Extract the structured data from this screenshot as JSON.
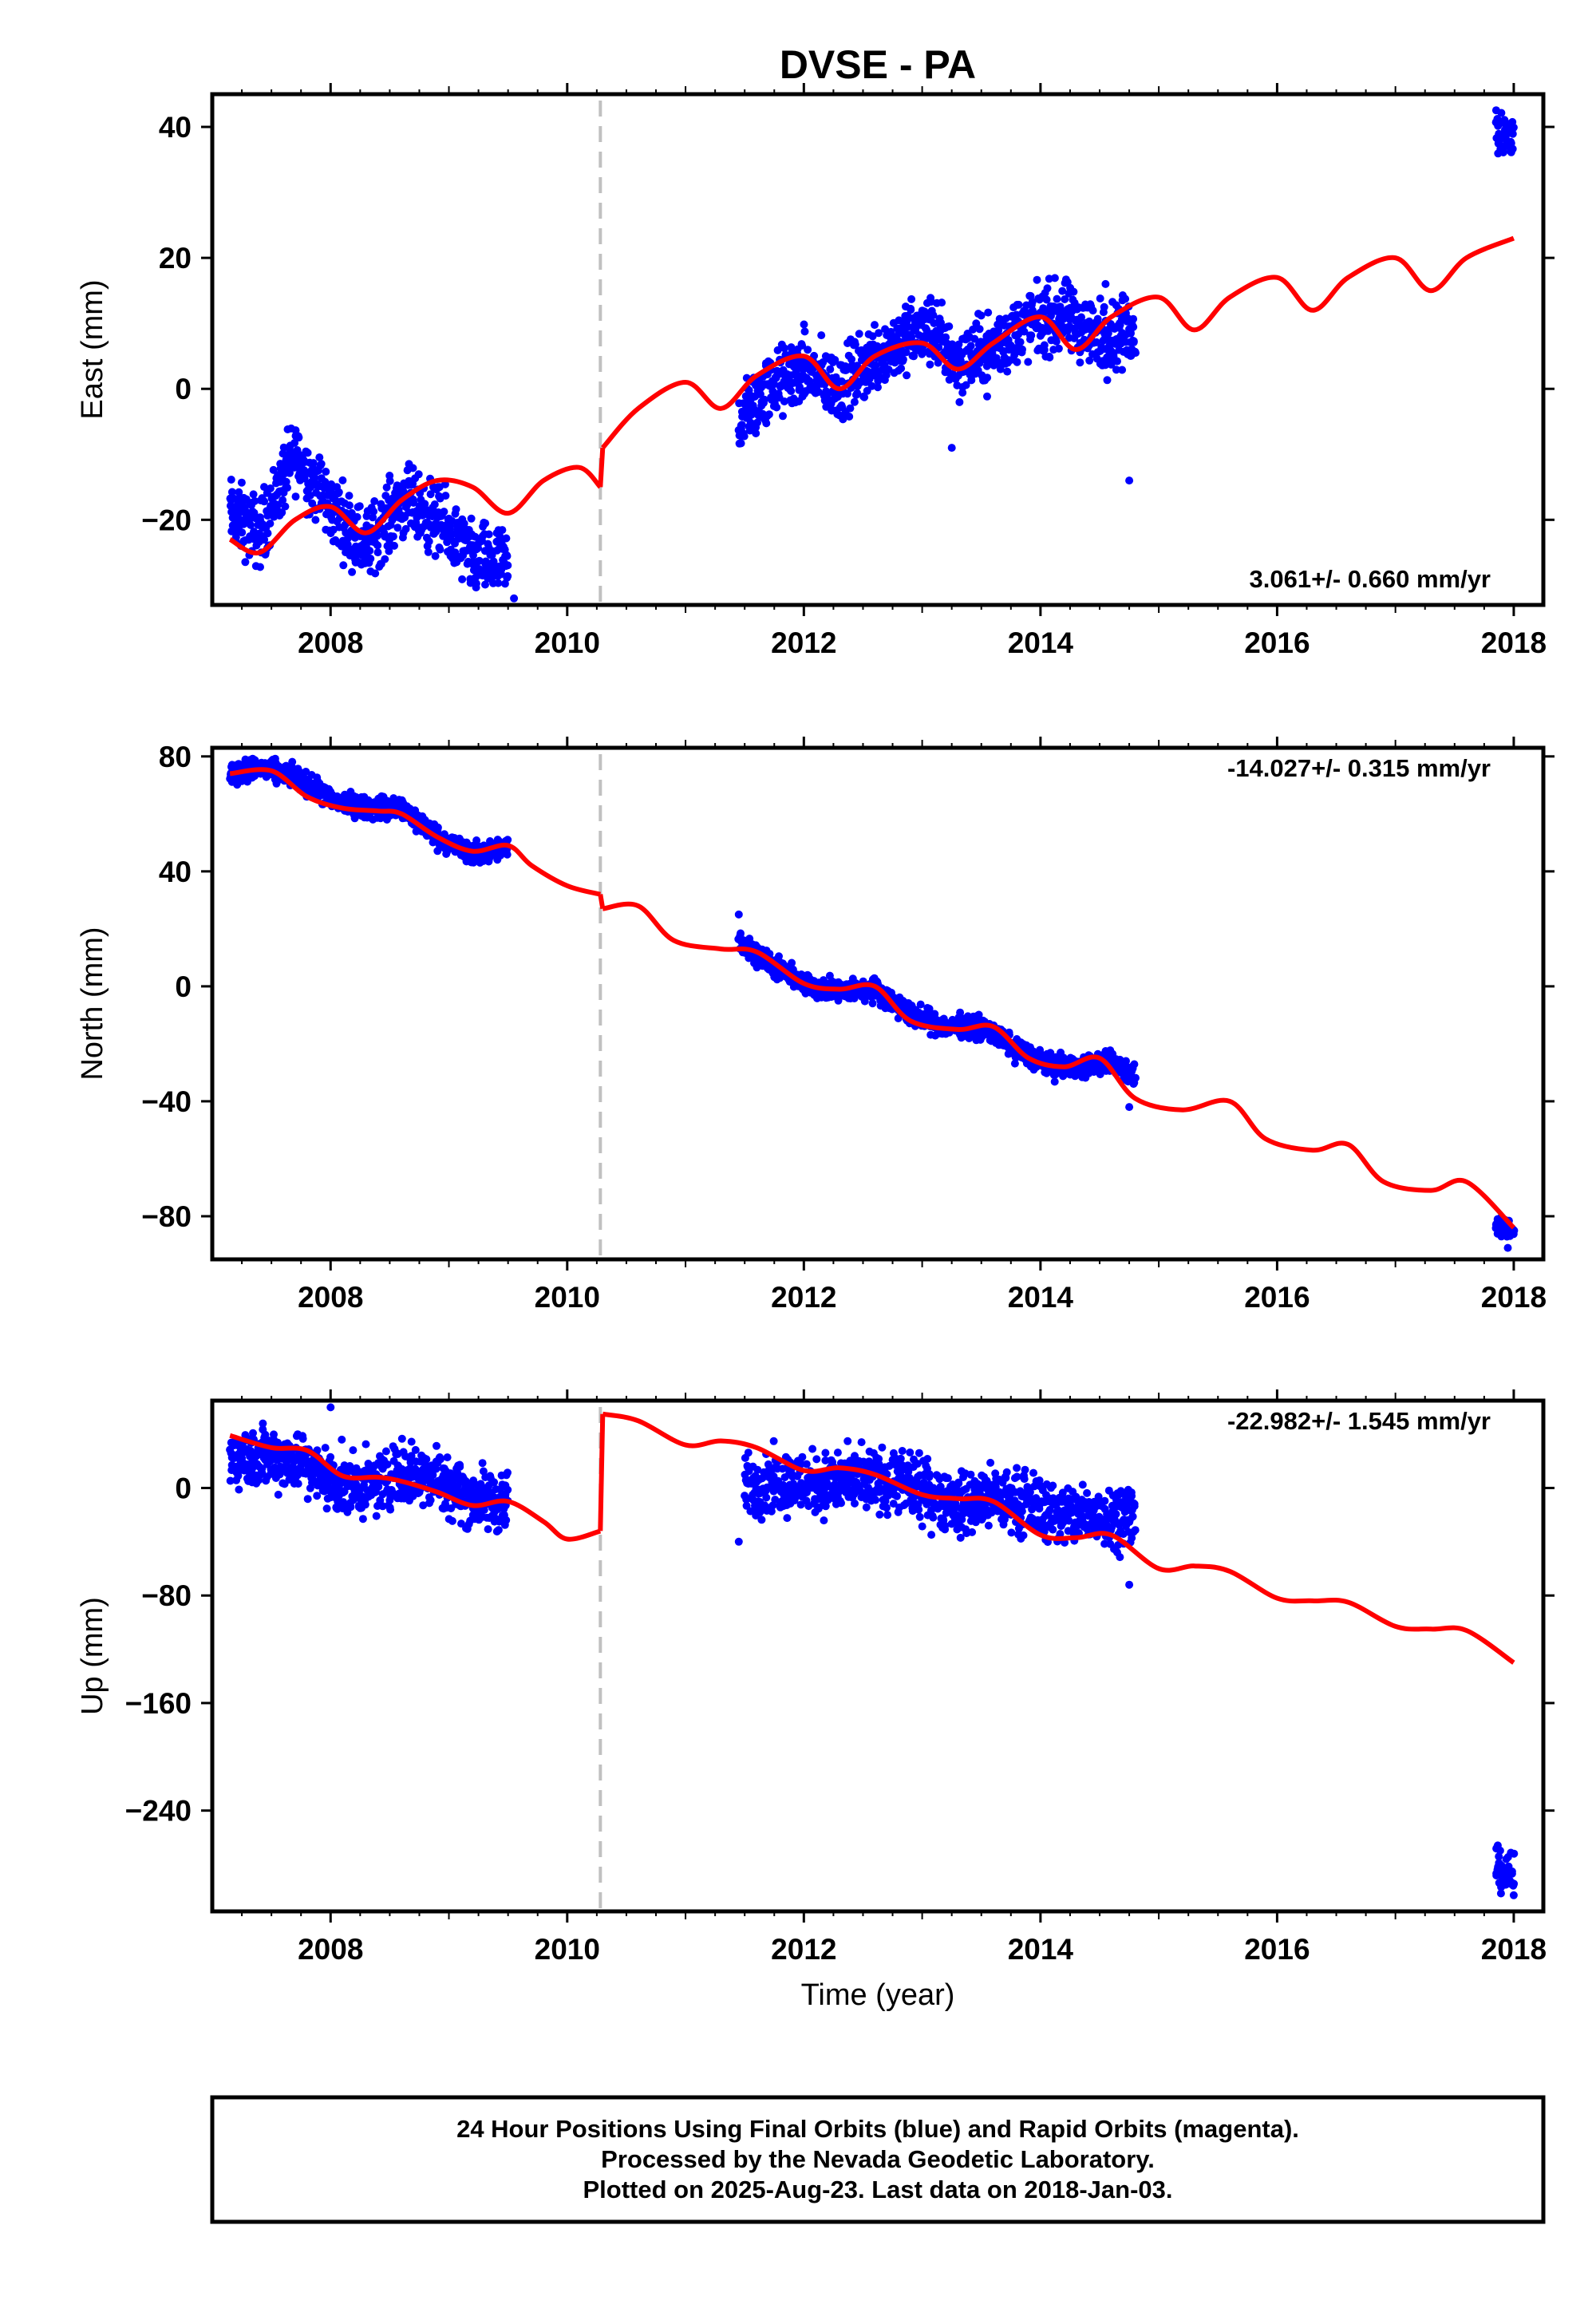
{
  "title": "DVSE - PA",
  "xlabel": "Time (year)",
  "colors": {
    "final": "#0000ff",
    "model": "#ff0000",
    "break_line": "#c0c0c0",
    "frame": "#000000"
  },
  "note_lines": [
    "24 Hour Positions Using Final Orbits (blue) and Rapid Orbits (magenta).",
    "Processed by the Nevada Geodetic Laboratory.",
    "Plotted on 2025-Aug-23. Last data on 2018-Jan-03."
  ],
  "chart_data": [
    {
      "type": "scatter",
      "ylabel": "East (mm)",
      "rate_text": "3.061+/- 0.660 mm/yr",
      "rate_position": "bottom-right",
      "xlim": [
        2007.0,
        2018.25
      ],
      "ylim": [
        -33,
        45
      ],
      "xticks": [
        2008,
        2010,
        2012,
        2014,
        2016,
        2018
      ],
      "yticks": [
        40,
        20,
        0,
        -20
      ],
      "ytick_labels": [
        "40",
        "20",
        "0",
        "−20"
      ],
      "break_x": 2010.28,
      "data_segments": [
        {
          "x": [
            2007.15,
            2007.4,
            2007.7,
            2008.0,
            2008.3,
            2008.6,
            2008.9,
            2009.2,
            2009.5
          ],
          "y": [
            -19,
            -22,
            -10,
            -18,
            -24,
            -17,
            -20,
            -26,
            -27
          ],
          "spread": 7
        },
        {
          "x": [
            2011.45,
            2011.7,
            2012.0,
            2012.3,
            2012.6,
            2012.9,
            2013.1,
            2013.3,
            2013.6,
            2013.9,
            2014.2,
            2014.5,
            2014.8
          ],
          "y": [
            -5,
            0,
            3,
            0,
            5,
            8,
            9,
            4,
            6,
            10,
            11,
            8,
            9
          ],
          "spread": 7
        },
        {
          "x": [
            2017.85,
            2018.0
          ],
          "y": [
            40,
            38
          ],
          "spread": 5
        }
      ],
      "outliers": [
        [
          2013.25,
          -9
        ],
        [
          2014.75,
          -14
        ],
        [
          2014.55,
          16
        ],
        [
          2009.55,
          -32
        ]
      ],
      "model": {
        "x": [
          2007.15,
          2007.4,
          2007.7,
          2008.0,
          2008.3,
          2008.6,
          2008.9,
          2009.2,
          2009.5,
          2009.8,
          2010.1,
          2010.28,
          2010.3,
          2010.6,
          2011.0,
          2011.3,
          2011.6,
          2012.0,
          2012.3,
          2012.6,
          2013.0,
          2013.3,
          2013.6,
          2014.0,
          2014.3,
          2014.6,
          2015.0,
          2015.3,
          2015.6,
          2016.0,
          2016.3,
          2016.6,
          2017.0,
          2017.3,
          2017.6,
          2018.0
        ],
        "y": [
          -23,
          -25,
          -20,
          -18,
          -22,
          -17,
          -14,
          -15,
          -19,
          -14,
          -12,
          -15,
          -9,
          -3,
          1,
          -3,
          2,
          5,
          0,
          5,
          7,
          3,
          7,
          11,
          6,
          11,
          14,
          9,
          14,
          17,
          12,
          17,
          20,
          15,
          20,
          23
        ]
      }
    },
    {
      "type": "scatter",
      "ylabel": "North (mm)",
      "rate_text": "-14.027+/- 0.315 mm/yr",
      "rate_position": "top-right",
      "xlim": [
        2007.0,
        2018.25
      ],
      "ylim": [
        -95,
        83
      ],
      "xticks": [
        2008,
        2010,
        2012,
        2014,
        2016,
        2018
      ],
      "yticks": [
        80,
        40,
        0,
        -40,
        -80
      ],
      "ytick_labels": [
        "80",
        "40",
        "0",
        "−40",
        "−80"
      ],
      "break_x": 2010.28,
      "data_segments": [
        {
          "x": [
            2007.15,
            2007.4,
            2007.7,
            2008.0,
            2008.3,
            2008.6,
            2008.9,
            2009.2,
            2009.5
          ],
          "y": [
            74,
            76,
            73,
            65,
            62,
            62,
            52,
            46,
            48
          ],
          "spread": 5
        },
        {
          "x": [
            2011.45,
            2011.7,
            2012.0,
            2012.3,
            2012.6,
            2012.9,
            2013.2,
            2013.5,
            2013.8,
            2014.1,
            2014.4,
            2014.6,
            2014.8
          ],
          "y": [
            16,
            8,
            1,
            -2,
            -1,
            -10,
            -14,
            -14,
            -22,
            -28,
            -28,
            -26,
            -32
          ],
          "spread": 5
        },
        {
          "x": [
            2017.85,
            2018.0
          ],
          "y": [
            -83,
            -86
          ],
          "spread": 4
        }
      ],
      "outliers": [
        [
          2011.45,
          25
        ],
        [
          2014.75,
          -42
        ],
        [
          2017.95,
          -91
        ]
      ],
      "model": {
        "x": [
          2007.15,
          2007.5,
          2007.8,
          2008.1,
          2008.4,
          2008.6,
          2008.9,
          2009.2,
          2009.5,
          2009.7,
          2010.0,
          2010.28,
          2010.3,
          2010.6,
          2010.9,
          2011.3,
          2011.6,
          2012.0,
          2012.3,
          2012.6,
          2012.9,
          2013.3,
          2013.6,
          2013.9,
          2014.2,
          2014.5,
          2014.8,
          2015.2,
          2015.6,
          2015.9,
          2016.3,
          2016.6,
          2016.9,
          2017.3,
          2017.6,
          2018.0
        ],
        "y": [
          74,
          75,
          66,
          62,
          61,
          60,
          52,
          47,
          49,
          42,
          35,
          32,
          27,
          28,
          16,
          13,
          12,
          1,
          -1,
          0,
          -12,
          -15,
          -14,
          -25,
          -28,
          -25,
          -39,
          -43,
          -40,
          -53,
          -57,
          -55,
          -68,
          -71,
          -68,
          -84
        ]
      }
    },
    {
      "type": "scatter",
      "ylabel": "Up (mm)",
      "rate_text": "-22.982+/- 1.545 mm/yr",
      "rate_position": "top-right",
      "xlim": [
        2007.0,
        2018.25
      ],
      "ylim": [
        -315,
        65
      ],
      "xticks": [
        2008,
        2010,
        2012,
        2014,
        2016,
        2018
      ],
      "yticks": [
        0,
        -80,
        -160,
        -240
      ],
      "ytick_labels": [
        "0",
        "−80",
        "−160",
        "−240"
      ],
      "break_x": 2010.28,
      "data_segments": [
        {
          "x": [
            2007.15,
            2007.4,
            2007.7,
            2008.0,
            2008.3,
            2008.6,
            2008.9,
            2009.2,
            2009.5
          ],
          "y": [
            22,
            24,
            22,
            5,
            0,
            12,
            8,
            -8,
            -12
          ],
          "spread": 30
        },
        {
          "x": [
            2011.5,
            2011.8,
            2012.1,
            2012.4,
            2012.7,
            2013.0,
            2013.3,
            2013.6,
            2013.9,
            2014.2,
            2014.5,
            2014.8
          ],
          "y": [
            2,
            5,
            3,
            5,
            5,
            -2,
            -12,
            -8,
            -12,
            -20,
            -20,
            -20
          ],
          "spread": 30
        },
        {
          "x": [
            2017.85,
            2018.0
          ],
          "y": [
            -282,
            -290
          ],
          "spread": 20
        }
      ],
      "outliers": [
        [
          2008.0,
          60
        ],
        [
          2011.45,
          -40
        ],
        [
          2014.75,
          -72
        ],
        [
          2018.0,
          -303
        ]
      ],
      "model": {
        "x": [
          2007.15,
          2007.5,
          2007.8,
          2008.1,
          2008.4,
          2008.6,
          2008.9,
          2009.2,
          2009.5,
          2009.8,
          2010.0,
          2010.28,
          2010.3,
          2010.6,
          2011.0,
          2011.3,
          2011.6,
          2012.0,
          2012.3,
          2012.6,
          2013.0,
          2013.3,
          2013.6,
          2014.0,
          2014.3,
          2014.6,
          2015.0,
          2015.3,
          2015.6,
          2016.0,
          2016.3,
          2016.6,
          2017.0,
          2017.3,
          2017.6,
          2018.0
        ],
        "y": [
          39,
          30,
          28,
          9,
          8,
          5,
          -3,
          -13,
          -10,
          -25,
          -38,
          -32,
          55,
          50,
          32,
          35,
          30,
          13,
          15,
          10,
          -5,
          -8,
          -10,
          -35,
          -37,
          -35,
          -60,
          -58,
          -62,
          -82,
          -84,
          -85,
          -103,
          -105,
          -106,
          -130
        ]
      }
    }
  ]
}
